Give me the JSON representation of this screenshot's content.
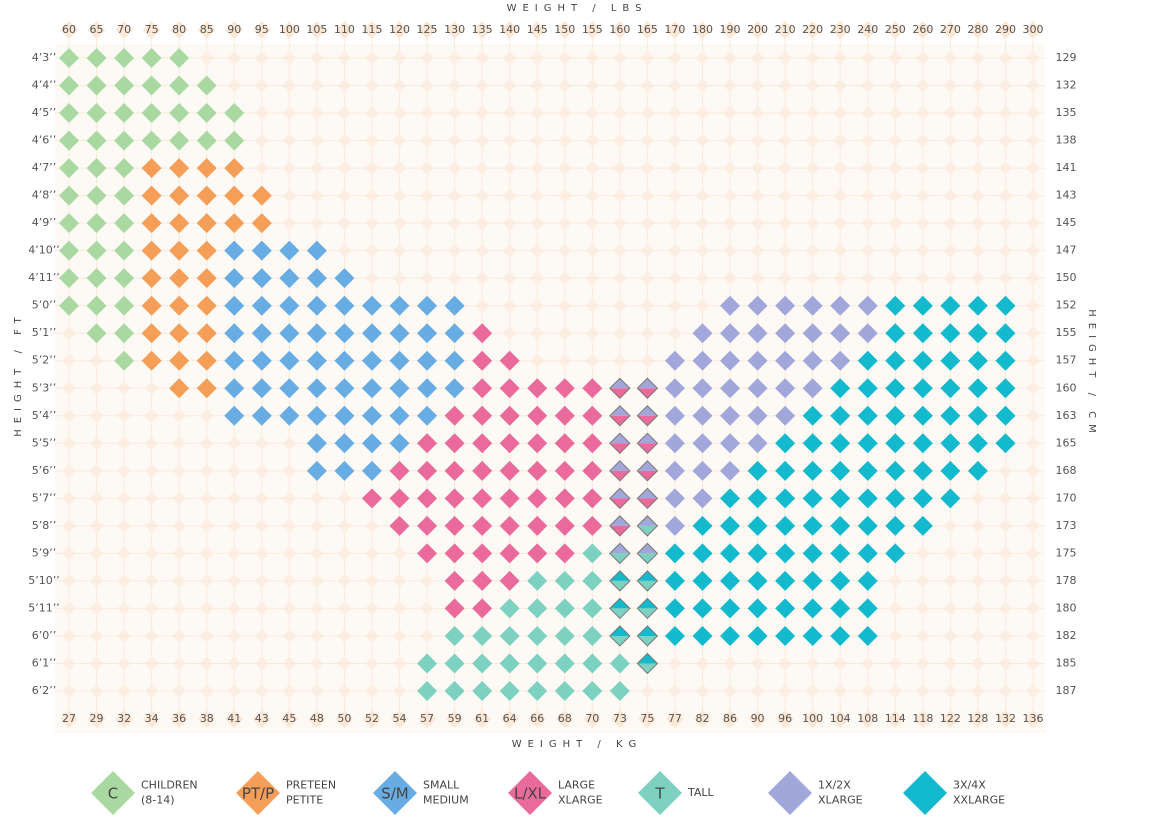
{
  "axis_titles": {
    "top": "WEIGHT / LBS",
    "bottom": "WEIGHT / KG",
    "left": "HEIGHT / FT",
    "right": "HEIGHT / CM"
  },
  "weights_lbs": [
    60,
    65,
    70,
    75,
    80,
    85,
    90,
    95,
    100,
    105,
    110,
    115,
    120,
    125,
    130,
    135,
    140,
    145,
    150,
    155,
    160,
    165,
    170,
    180,
    190,
    200,
    210,
    220,
    230,
    240,
    250,
    260,
    270,
    280,
    290,
    300
  ],
  "weights_kg": [
    27,
    29,
    32,
    34,
    36,
    38,
    41,
    43,
    45,
    48,
    50,
    52,
    54,
    57,
    59,
    61,
    64,
    66,
    68,
    70,
    73,
    75,
    77,
    82,
    86,
    90,
    96,
    100,
    104,
    108,
    114,
    118,
    122,
    128,
    132,
    136
  ],
  "legend": [
    {
      "code": "C",
      "lines": [
        "CHILDREN",
        "(8-14)"
      ],
      "color": "#a9d9a1"
    },
    {
      "code": "PT/P",
      "lines": [
        "PRETEEN",
        "PETITE"
      ],
      "color": "#f59e58"
    },
    {
      "code": "S/M",
      "lines": [
        "SMALL",
        "MEDIUM"
      ],
      "color": "#67ace2"
    },
    {
      "code": "L/XL",
      "lines": [
        "LARGE",
        "XLARGE"
      ],
      "color": "#ea6a9b"
    },
    {
      "code": "T",
      "lines": [
        "TALL"
      ],
      "color": "#7dd1c0"
    },
    {
      "lines": [
        "1X/2X",
        "XLARGE"
      ],
      "color": "#a1a7db"
    },
    {
      "lines": [
        "3X/4X",
        "XXLARGE"
      ],
      "color": "#13b9cc"
    }
  ],
  "rows": [
    {
      "ft": "4’3’’",
      "cm": 129,
      "spans": [
        [
          60,
          80,
          0
        ]
      ]
    },
    {
      "ft": "4’4’’",
      "cm": 132,
      "spans": [
        [
          60,
          85,
          0
        ]
      ]
    },
    {
      "ft": "4’5’’",
      "cm": 135,
      "spans": [
        [
          60,
          90,
          0
        ]
      ]
    },
    {
      "ft": "4’6’’",
      "cm": 138,
      "spans": [
        [
          60,
          90,
          0
        ]
      ]
    },
    {
      "ft": "4’7’’",
      "cm": 141,
      "spans": [
        [
          60,
          70,
          0
        ],
        [
          75,
          90,
          1
        ]
      ]
    },
    {
      "ft": "4’8’’",
      "cm": 143,
      "spans": [
        [
          60,
          70,
          0
        ],
        [
          75,
          95,
          1
        ]
      ]
    },
    {
      "ft": "4’9’’",
      "cm": 145,
      "spans": [
        [
          60,
          70,
          0
        ],
        [
          75,
          95,
          1
        ]
      ]
    },
    {
      "ft": "4’10’’",
      "cm": 147,
      "spans": [
        [
          60,
          70,
          0
        ],
        [
          75,
          85,
          1
        ],
        [
          90,
          105,
          2
        ]
      ]
    },
    {
      "ft": "4’11’’",
      "cm": 150,
      "spans": [
        [
          60,
          70,
          0
        ],
        [
          75,
          85,
          1
        ],
        [
          90,
          110,
          2
        ]
      ]
    },
    {
      "ft": "5’0’’",
      "cm": 152,
      "spans": [
        [
          60,
          70,
          0
        ],
        [
          75,
          85,
          1
        ],
        [
          90,
          130,
          2
        ],
        [
          190,
          240,
          5
        ],
        [
          250,
          290,
          6
        ]
      ]
    },
    {
      "ft": "5’1’’",
      "cm": 155,
      "spans": [
        [
          65,
          70,
          0
        ],
        [
          75,
          85,
          1
        ],
        [
          90,
          130,
          2
        ],
        [
          135,
          135,
          3
        ],
        [
          180,
          240,
          5
        ],
        [
          250,
          290,
          6
        ]
      ]
    },
    {
      "ft": "5’2’’",
      "cm": 157,
      "spans": [
        [
          70,
          70,
          0
        ],
        [
          75,
          85,
          1
        ],
        [
          90,
          130,
          2
        ],
        [
          135,
          140,
          3
        ],
        [
          170,
          230,
          5
        ],
        [
          240,
          290,
          6
        ]
      ]
    },
    {
      "ft": "5’3’’",
      "cm": 160,
      "spans": [
        [
          80,
          85,
          1
        ],
        [
          90,
          130,
          2
        ],
        [
          135,
          155,
          3
        ],
        [
          170,
          220,
          5
        ],
        [
          230,
          290,
          6
        ]
      ],
      "splits": [
        [
          160,
          5,
          3
        ],
        [
          165,
          5,
          3
        ]
      ]
    },
    {
      "ft": "5’4’’",
      "cm": 163,
      "spans": [
        [
          90,
          125,
          2
        ],
        [
          130,
          155,
          3
        ],
        [
          170,
          210,
          5
        ],
        [
          220,
          290,
          6
        ]
      ],
      "splits": [
        [
          160,
          5,
          3
        ],
        [
          165,
          5,
          3
        ]
      ]
    },
    {
      "ft": "5’5’’",
      "cm": 165,
      "spans": [
        [
          105,
          120,
          2
        ],
        [
          125,
          155,
          3
        ],
        [
          170,
          200,
          5
        ],
        [
          210,
          290,
          6
        ]
      ],
      "splits": [
        [
          160,
          5,
          3
        ],
        [
          165,
          5,
          3
        ]
      ]
    },
    {
      "ft": "5’6’’",
      "cm": 168,
      "spans": [
        [
          105,
          115,
          2
        ],
        [
          120,
          155,
          3
        ],
        [
          170,
          190,
          5
        ],
        [
          200,
          280,
          6
        ]
      ],
      "splits": [
        [
          160,
          5,
          3
        ],
        [
          165,
          5,
          3
        ]
      ]
    },
    {
      "ft": "5’7’’",
      "cm": 170,
      "spans": [
        [
          115,
          155,
          3
        ],
        [
          170,
          180,
          5
        ],
        [
          190,
          270,
          6
        ]
      ],
      "splits": [
        [
          160,
          5,
          3
        ],
        [
          165,
          5,
          3
        ]
      ]
    },
    {
      "ft": "5’8’’",
      "cm": 173,
      "spans": [
        [
          120,
          155,
          3
        ],
        [
          170,
          170,
          5
        ],
        [
          180,
          260,
          6
        ]
      ],
      "splits": [
        [
          160,
          5,
          3
        ],
        [
          165,
          5,
          4
        ]
      ]
    },
    {
      "ft": "5’9’’",
      "cm": 175,
      "spans": [
        [
          125,
          150,
          3
        ],
        [
          155,
          155,
          4
        ],
        [
          170,
          250,
          6
        ]
      ],
      "splits": [
        [
          160,
          5,
          4
        ],
        [
          165,
          5,
          4
        ]
      ]
    },
    {
      "ft": "5’10’’",
      "cm": 178,
      "spans": [
        [
          130,
          140,
          3
        ],
        [
          145,
          155,
          4
        ],
        [
          170,
          240,
          6
        ]
      ],
      "splits": [
        [
          160,
          6,
          4
        ],
        [
          165,
          6,
          4
        ]
      ]
    },
    {
      "ft": "5’11’’",
      "cm": 180,
      "spans": [
        [
          130,
          135,
          3
        ],
        [
          140,
          155,
          4
        ],
        [
          170,
          240,
          6
        ]
      ],
      "splits": [
        [
          160,
          6,
          4
        ],
        [
          165,
          6,
          4
        ]
      ]
    },
    {
      "ft": "6’0’’",
      "cm": 182,
      "spans": [
        [
          130,
          155,
          4
        ],
        [
          170,
          240,
          6
        ]
      ],
      "splits": [
        [
          160,
          6,
          4
        ],
        [
          165,
          6,
          4
        ]
      ]
    },
    {
      "ft": "6’1’’",
      "cm": 185,
      "spans": [
        [
          125,
          160,
          4
        ]
      ],
      "splits": [
        [
          165,
          6,
          4
        ]
      ]
    },
    {
      "ft": "6’2’’",
      "cm": 187,
      "spans": [
        [
          125,
          160,
          4
        ]
      ]
    }
  ]
}
